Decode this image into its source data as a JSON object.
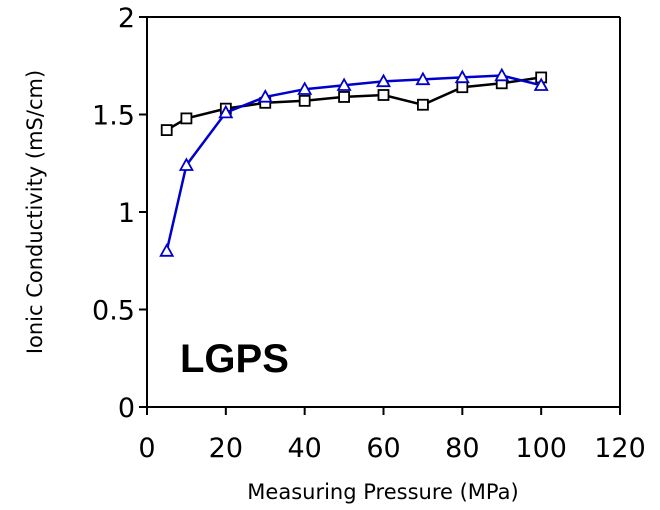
{
  "chart_data": {
    "type": "line",
    "title": "",
    "xlabel": "Measuring Pressure (MPa)",
    "ylabel": "Ionic Conductivity (mS/cm)",
    "xlim": [
      0,
      120
    ],
    "ylim": [
      0,
      2
    ],
    "xticks": [
      "0",
      "20",
      "40",
      "60",
      "80",
      "100",
      "120"
    ],
    "yticks": [
      "0",
      "0.5",
      "1",
      "1.5",
      "2"
    ],
    "annotation": "LGPS",
    "grid": false,
    "legend": "none",
    "series": [
      {
        "marker": "square",
        "color": "#000000",
        "x": [
          5,
          10,
          20,
          30,
          40,
          50,
          60,
          70,
          80,
          90,
          100
        ],
        "y": [
          1.42,
          1.48,
          1.53,
          1.56,
          1.57,
          1.59,
          1.6,
          1.55,
          1.64,
          1.66,
          1.69
        ]
      },
      {
        "marker": "triangle",
        "color": "#0000cc",
        "x": [
          5,
          10,
          20,
          30,
          40,
          50,
          60,
          70,
          80,
          90,
          100
        ],
        "y": [
          0.8,
          1.24,
          1.51,
          1.59,
          1.63,
          1.65,
          1.67,
          1.68,
          1.69,
          1.7,
          1.65
        ]
      }
    ]
  }
}
